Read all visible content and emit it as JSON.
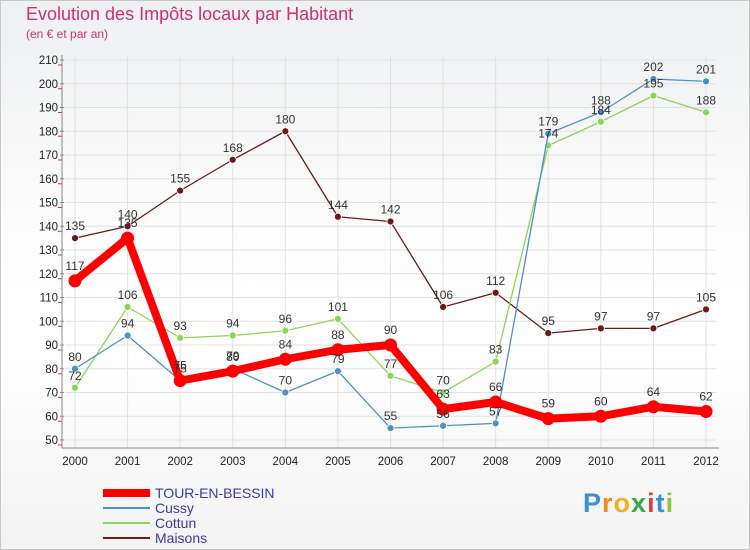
{
  "title": "Evolution des Impôts locaux par Habitant",
  "subtitle": "(en € et par an)",
  "logo": {
    "letters": [
      "P",
      "r",
      "o",
      "x",
      "i",
      "t",
      "i"
    ],
    "colors": [
      "#3b8fd6",
      "#f08a1c",
      "#f0b020",
      "#3aa84a",
      "#e04040",
      "#3b8fd6",
      "#8cc63f"
    ]
  },
  "chart_data": {
    "type": "line",
    "x": [
      "2000",
      "2001",
      "2002",
      "2003",
      "2004",
      "2005",
      "2006",
      "2007",
      "2008",
      "2009",
      "2010",
      "2011",
      "2012"
    ],
    "ylim": [
      50,
      210
    ],
    "yticks": [
      50,
      60,
      70,
      80,
      90,
      100,
      110,
      120,
      130,
      140,
      150,
      160,
      170,
      180,
      190,
      200,
      210
    ],
    "grid": true,
    "legend_position": "bottom-left",
    "series": [
      {
        "name": "Maisons",
        "color": "#6b1a1a",
        "values": [
          135,
          140,
          155,
          168,
          180,
          144,
          142,
          106,
          112,
          95,
          97,
          97,
          105
        ]
      },
      {
        "name": "Cottun",
        "color": "#8cd655",
        "values": [
          72,
          106,
          93,
          94,
          96,
          101,
          77,
          70,
          83,
          174,
          184,
          195,
          188
        ]
      },
      {
        "name": "Cussy",
        "color": "#4f8fc8",
        "values": [
          80,
          94,
          75,
          80,
          70,
          79,
          55,
          56,
          57,
          179,
          188,
          202,
          201
        ]
      },
      {
        "name": "TOUR-EN-BESSIN",
        "color": "#ff0000",
        "values": [
          117,
          135,
          75,
          79,
          84,
          88,
          90,
          63,
          66,
          59,
          60,
          64,
          62
        ]
      }
    ]
  }
}
